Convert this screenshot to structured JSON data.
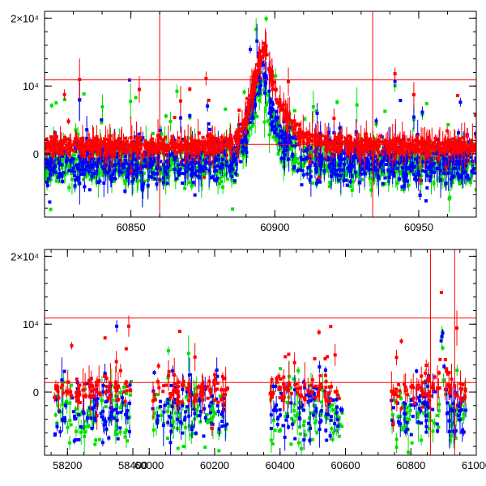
{
  "chart_data": [
    {
      "type": "scatter",
      "title": "",
      "xlabel": "",
      "ylabel": "",
      "xlim": [
        60820,
        60970
      ],
      "ylim": [
        -9300,
        21000
      ],
      "x_ticks": [
        60850,
        60900,
        60950
      ],
      "x_tick_labels": [
        "60850",
        "60900",
        "60950"
      ],
      "y_ticks": [
        0,
        10000,
        20000
      ],
      "y_tick_labels": [
        "0",
        "10⁴",
        "2×10⁴"
      ],
      "hlines": [
        10900,
        1400
      ],
      "vlines": [
        60860,
        60934
      ],
      "series": [
        {
          "name": "red",
          "color": "#ff0000",
          "segments": [
            [
              60820,
              60970
            ]
          ],
          "base": 1200,
          "scatter": 900,
          "outliers": 0.04,
          "peak": {
            "x": 60897,
            "height": 14000,
            "rise": 4.5,
            "decay": 6
          }
        },
        {
          "name": "blue",
          "color": "#0000ff",
          "segments": [
            [
              60820,
              60970
            ]
          ],
          "base": -1000,
          "scatter": 2400,
          "outliers": 0.05,
          "peak": {
            "x": 60896,
            "height": 13000,
            "rise": 4,
            "decay": 5
          }
        },
        {
          "name": "green",
          "color": "#00e000",
          "segments": [
            [
              60820,
              60970
            ]
          ],
          "base": -1500,
          "scatter": 2200,
          "outliers": 0.06,
          "peak": {
            "x": 60896,
            "height": 12000,
            "rise": 4,
            "decay": 5
          }
        }
      ]
    },
    {
      "type": "scatter",
      "title": "",
      "xlabel": "",
      "ylabel": "",
      "xlim": [
        58130,
        61000
      ],
      "ylim": [
        -9300,
        21000
      ],
      "x_ticks": [
        58200,
        58400,
        60000,
        60200,
        60400,
        60600,
        60800,
        61000
      ],
      "x_tick_labels": [
        "58200",
        "58400",
        "60000",
        "60200",
        "60400",
        "60600",
        "60800",
        "61000"
      ],
      "axis_break": {
        "at": 58425,
        "left_x": [
          58130,
          58425
        ],
        "right_x": [
          59975,
          61000
        ]
      },
      "y_ticks": [
        0,
        10000,
        20000
      ],
      "y_tick_labels": [
        "0",
        "10⁴",
        "2×10⁴"
      ],
      "hlines": [
        10900,
        1400
      ],
      "vlines": [
        60860,
        60934
      ],
      "series": [
        {
          "name": "red",
          "color": "#ff0000",
          "segments": [
            [
              58160,
              58395
            ],
            [
              60010,
              60240
            ],
            [
              60370,
              60590
            ],
            [
              60740,
              60970
            ]
          ],
          "base": 300,
          "scatter": 1500,
          "outliers": 0.08,
          "peak": {
            "x": 60897,
            "height": 20000,
            "rise": 4.5,
            "decay": 6
          }
        },
        {
          "name": "blue",
          "color": "#0000ff",
          "segments": [
            [
              58160,
              58395
            ],
            [
              60010,
              60240
            ],
            [
              60370,
              60590
            ],
            [
              60740,
              60970
            ]
          ],
          "base": -2600,
          "scatter": 3200,
          "outliers": 0.05,
          "peak": {
            "x": 60896,
            "height": 14000,
            "rise": 4,
            "decay": 5
          }
        },
        {
          "name": "green",
          "color": "#00e000",
          "segments": [
            [
              58160,
              58395
            ],
            [
              60010,
              60240
            ],
            [
              60370,
              60590
            ],
            [
              60740,
              60970
            ]
          ],
          "base": -3200,
          "scatter": 3200,
          "outliers": 0.06,
          "peak": {
            "x": 60896,
            "height": 12000,
            "rise": 4,
            "decay": 5
          }
        }
      ]
    }
  ]
}
